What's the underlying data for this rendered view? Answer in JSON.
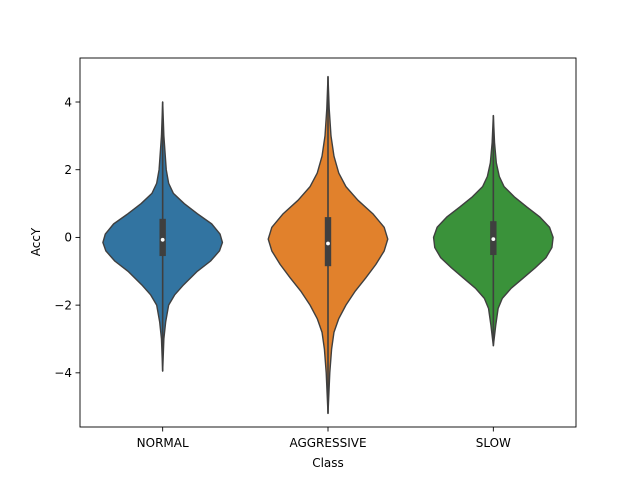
{
  "chart_data": {
    "type": "violin",
    "xlabel": "Class",
    "ylabel": "AccY",
    "ylim": [
      -5.6,
      5.3
    ],
    "yticks": [
      -4,
      -2,
      0,
      2,
      4
    ],
    "ytick_labels": [
      "−4",
      "−2",
      "0",
      "2",
      "4"
    ],
    "categories": [
      "NORMAL",
      "AGGRESSIVE",
      "SLOW"
    ],
    "grid": false,
    "legend": "none",
    "series": [
      {
        "category": "NORMAL",
        "color": "#3274a1",
        "min": -3.95,
        "q1": -0.55,
        "median": -0.07,
        "q3": 0.55,
        "max": 4.0,
        "density": [
          [
            -3.95,
            0.0
          ],
          [
            -3.0,
            0.02
          ],
          [
            -2.5,
            0.05
          ],
          [
            -2.0,
            0.1
          ],
          [
            -1.7,
            0.2
          ],
          [
            -1.4,
            0.35
          ],
          [
            -1.0,
            0.58
          ],
          [
            -0.7,
            0.8
          ],
          [
            -0.4,
            0.95
          ],
          [
            -0.15,
            1.0
          ],
          [
            0.1,
            0.96
          ],
          [
            0.4,
            0.82
          ],
          [
            0.7,
            0.58
          ],
          [
            1.0,
            0.36
          ],
          [
            1.3,
            0.18
          ],
          [
            1.6,
            0.1
          ],
          [
            2.0,
            0.06
          ],
          [
            2.5,
            0.04
          ],
          [
            3.0,
            0.02
          ],
          [
            4.0,
            0.0
          ]
        ]
      },
      {
        "category": "AGGRESSIVE",
        "color": "#e1812c",
        "min": -5.2,
        "q1": -0.85,
        "median": -0.18,
        "q3": 0.6,
        "max": 4.75,
        "density": [
          [
            -5.2,
            0.0
          ],
          [
            -4.0,
            0.03
          ],
          [
            -3.3,
            0.06
          ],
          [
            -2.8,
            0.1
          ],
          [
            -2.4,
            0.18
          ],
          [
            -2.0,
            0.3
          ],
          [
            -1.6,
            0.45
          ],
          [
            -1.2,
            0.63
          ],
          [
            -0.8,
            0.8
          ],
          [
            -0.4,
            0.94
          ],
          [
            -0.05,
            1.0
          ],
          [
            0.3,
            0.94
          ],
          [
            0.7,
            0.75
          ],
          [
            1.1,
            0.5
          ],
          [
            1.5,
            0.3
          ],
          [
            1.9,
            0.18
          ],
          [
            2.4,
            0.1
          ],
          [
            3.0,
            0.05
          ],
          [
            3.8,
            0.02
          ],
          [
            4.75,
            0.0
          ]
        ]
      },
      {
        "category": "SLOW",
        "color": "#3a923a",
        "min": -3.2,
        "q1": -0.52,
        "median": -0.05,
        "q3": 0.48,
        "max": 3.6,
        "density": [
          [
            -3.2,
            0.0
          ],
          [
            -2.6,
            0.04
          ],
          [
            -2.1,
            0.08
          ],
          [
            -1.8,
            0.15
          ],
          [
            -1.5,
            0.3
          ],
          [
            -1.2,
            0.5
          ],
          [
            -0.9,
            0.7
          ],
          [
            -0.6,
            0.88
          ],
          [
            -0.3,
            0.98
          ],
          [
            0.0,
            1.0
          ],
          [
            0.3,
            0.94
          ],
          [
            0.6,
            0.78
          ],
          [
            0.9,
            0.56
          ],
          [
            1.2,
            0.35
          ],
          [
            1.5,
            0.18
          ],
          [
            1.8,
            0.1
          ],
          [
            2.2,
            0.05
          ],
          [
            2.8,
            0.02
          ],
          [
            3.6,
            0.0
          ]
        ]
      }
    ]
  }
}
